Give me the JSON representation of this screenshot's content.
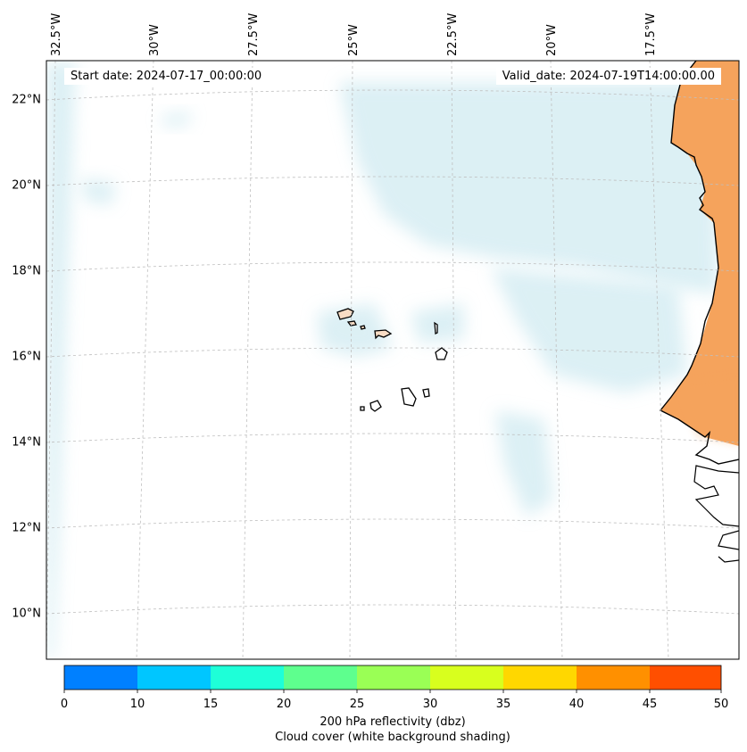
{
  "map": {
    "longitude_labels": [
      "32.5°W",
      "30°W",
      "27.5°W",
      "25°W",
      "22.5°W",
      "20°W",
      "17.5°W"
    ],
    "latitude_labels": [
      "22°N",
      "20°N",
      "18°N",
      "16°N",
      "14°N",
      "12°N",
      "10°N"
    ],
    "start_date": "Start date: 2024-07-17_00:00:00",
    "valid_date": "Valid_date: 2024-07-19T14:00:00.00",
    "land_color": "#f5a35c",
    "cloud_color": "#bfe3ec",
    "island_fill": "#f8dcc4"
  },
  "colorbar": {
    "ticks": [
      "0",
      "10",
      "15",
      "20",
      "25",
      "30",
      "35",
      "40",
      "45",
      "50"
    ],
    "colors": [
      "#0080ff",
      "#00c6ff",
      "#1effd8",
      "#5eff8e",
      "#9aff55",
      "#d8ff1e",
      "#ffd700",
      "#ff9000",
      "#ff4f00"
    ],
    "label": "200 hPa reflectivity (dbz)",
    "sublabel": "Cloud cover (white background shading)"
  }
}
